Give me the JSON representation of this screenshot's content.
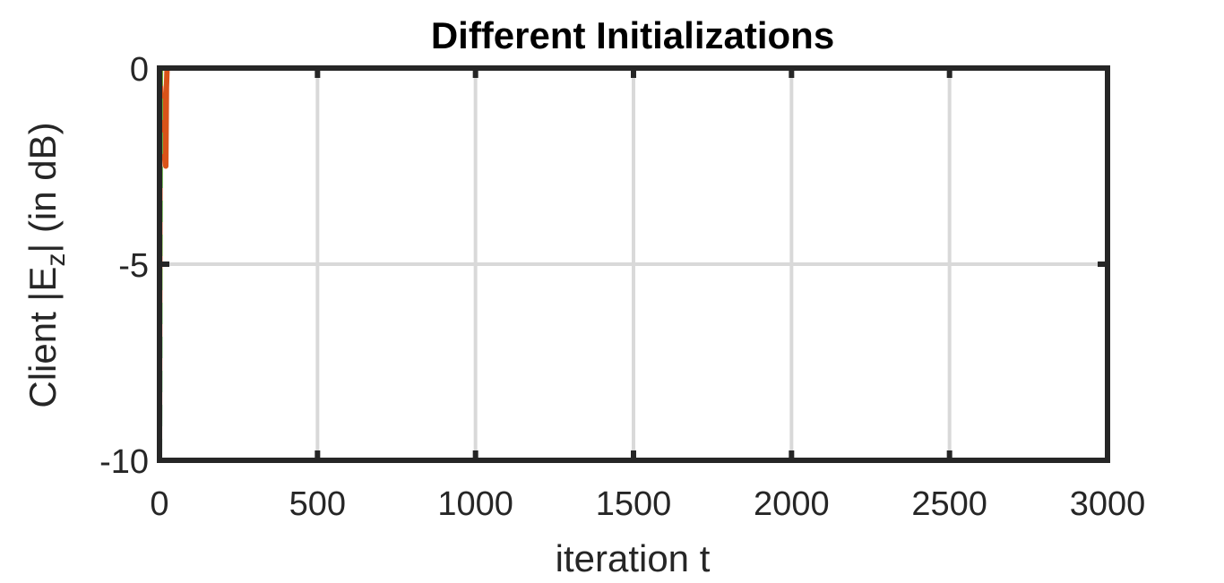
{
  "chart_data": {
    "type": "line",
    "title": "Different Initializations",
    "xlabel": "iteration t",
    "ylabel": {
      "prefix": "Client |E",
      "subscript": "z",
      "suffix": "| (in dB)"
    },
    "xlim": [
      0,
      3000
    ],
    "ylim": [
      -10,
      0
    ],
    "xticks": [
      0,
      500,
      1000,
      1500,
      2000,
      2500,
      3000
    ],
    "xtick_labels": [
      "0",
      "500",
      "1000",
      "1500",
      "2000",
      "2500",
      "3000"
    ],
    "yticks": [
      0,
      -5,
      -10
    ],
    "ytick_labels": [
      "0",
      "-5",
      "-10"
    ],
    "grid": true,
    "series": [
      {
        "color": "#d95319",
        "dash": "solid",
        "x": [
          0,
          2,
          20,
          22,
          24,
          3000
        ],
        "y": [
          -10,
          -0.3,
          -2.5,
          -0.5,
          0,
          0
        ]
      },
      {
        "color": "#00ffff",
        "dash": "dashed",
        "x": [
          0,
          1,
          3,
          3000
        ],
        "y": [
          -10,
          -5.8,
          0,
          0
        ]
      },
      {
        "color": "#77ac30",
        "dash": "dashed",
        "x": [
          0,
          3,
          3000
        ],
        "y": [
          -10,
          0,
          0
        ]
      }
    ],
    "colors": {
      "axis": "#262626",
      "grid": "#d9d9d9"
    }
  }
}
